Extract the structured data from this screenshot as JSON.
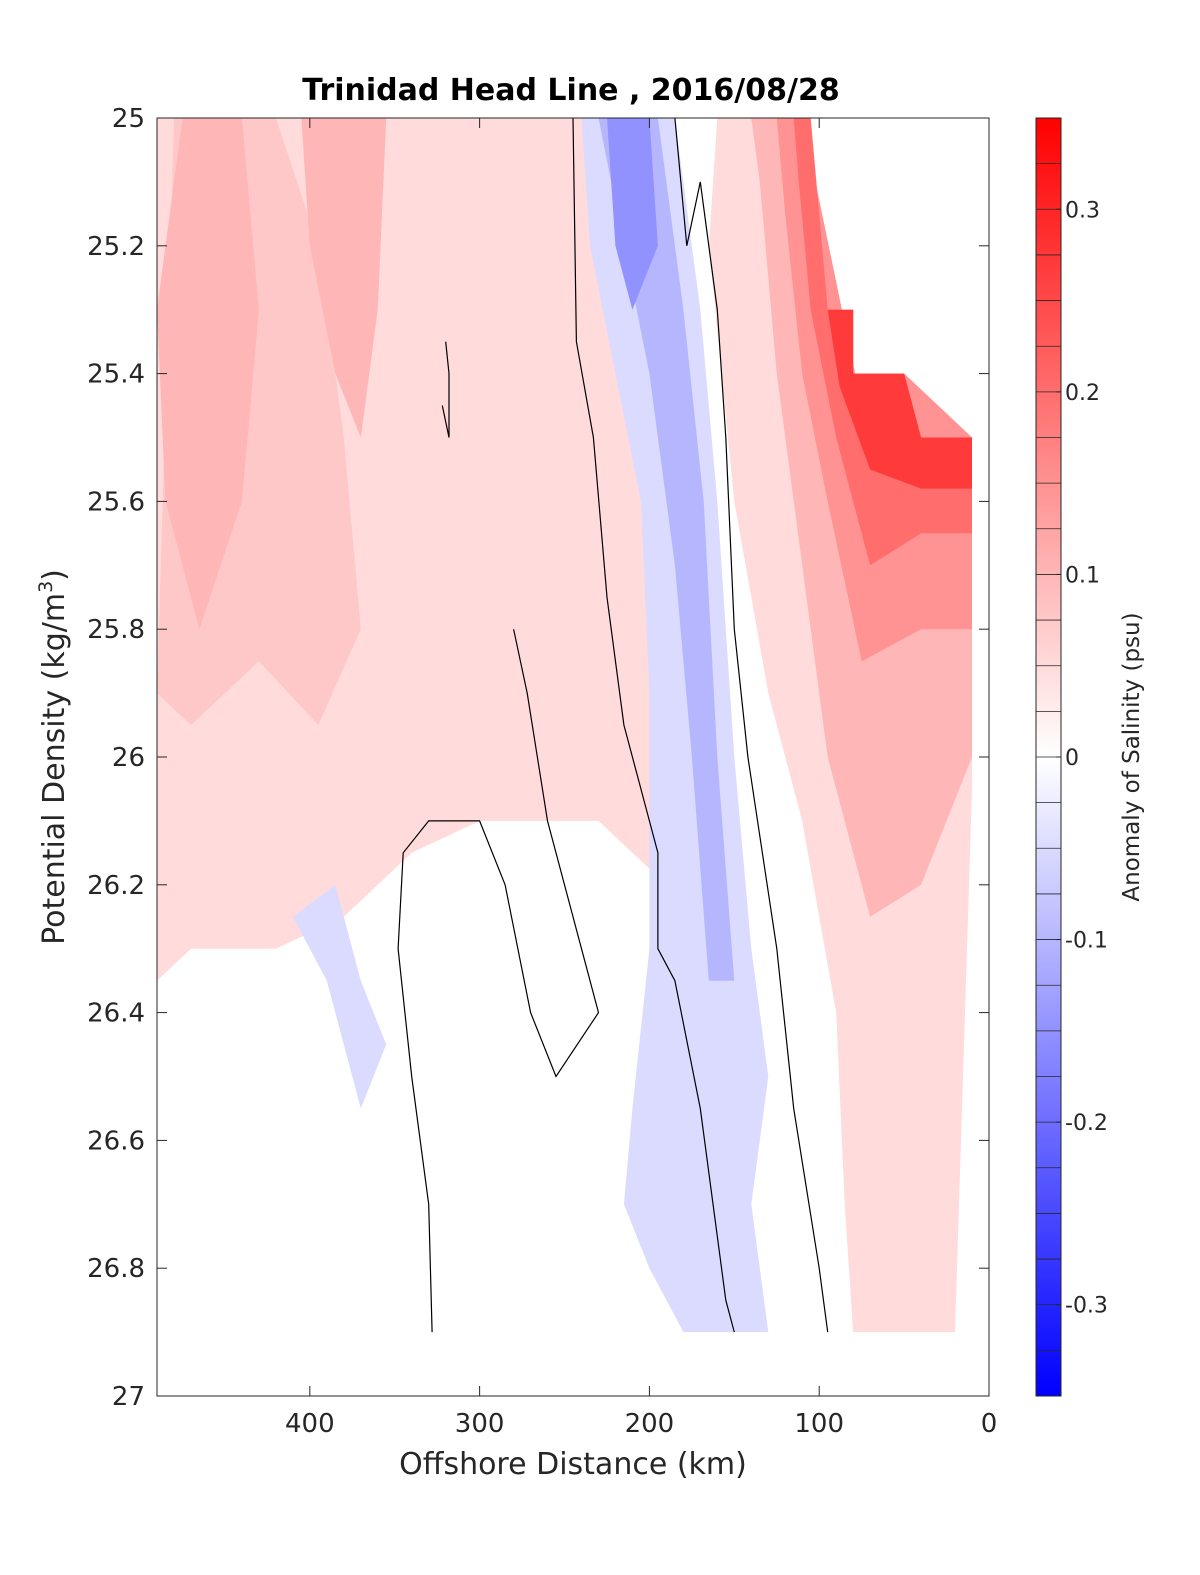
{
  "chart_data": {
    "type": "heatmap",
    "subtype": "filled-contour",
    "title": "Trinidad Head Line , 2016/08/28",
    "xlabel": "Offshore Distance (km)",
    "ylabel_main": "Potential Density (kg/m",
    "ylabel_sup": "3",
    "ylabel_close": ")",
    "xlim": [
      490,
      0
    ],
    "x_reversed": true,
    "ylim": [
      27,
      25
    ],
    "y_reversed": true,
    "x_ticks": [
      400,
      300,
      200,
      100,
      0
    ],
    "y_ticks": [
      25,
      25.2,
      25.4,
      25.6,
      25.8,
      26,
      26.2,
      26.4,
      26.6,
      26.8,
      27
    ],
    "grid": false,
    "colorbar": {
      "label": "Anomaly of Salinity (psu)",
      "range": [
        -0.35,
        0.35
      ],
      "levels_step": 0.025,
      "ticks": [
        -0.3,
        -0.2,
        -0.1,
        0,
        0.1,
        0.2,
        0.3
      ],
      "negative_color": "#0000ff",
      "zero_color": "#ffffff",
      "positive_color": "#ff0000"
    },
    "regions": [
      {
        "name": "red",
        "value": 0.05,
        "points": [
          [
            490,
            25
          ],
          [
            185,
            25
          ],
          [
            178,
            25.2
          ],
          [
            175,
            25.5
          ],
          [
            172,
            25.8
          ],
          [
            175,
            26.0
          ],
          [
            190,
            26.2
          ],
          [
            230,
            26.1
          ],
          [
            300,
            26.1
          ],
          [
            340,
            26.15
          ],
          [
            380,
            26.25
          ],
          [
            420,
            26.3
          ],
          [
            470,
            26.3
          ],
          [
            490,
            26.35
          ]
        ]
      },
      {
        "name": "red",
        "value": 0.05,
        "points": [
          [
            160,
            25
          ],
          [
            110,
            25
          ],
          [
            75,
            25.45
          ],
          [
            50,
            25.4
          ],
          [
            10,
            25.5
          ],
          [
            10,
            26.05
          ],
          [
            20,
            26.9
          ],
          [
            80,
            26.9
          ],
          [
            85,
            26.7
          ],
          [
            90,
            26.4
          ],
          [
            110,
            26.1
          ],
          [
            130,
            25.9
          ],
          [
            150,
            25.6
          ],
          [
            165,
            25.2
          ]
        ]
      },
      {
        "name": "red",
        "value": 0.075,
        "points": [
          [
            480,
            25
          ],
          [
            420,
            25
          ],
          [
            395,
            25.2
          ],
          [
            380,
            25.5
          ],
          [
            370,
            25.8
          ],
          [
            395,
            25.95
          ],
          [
            430,
            25.85
          ],
          [
            470,
            25.95
          ],
          [
            490,
            25.9
          ]
        ]
      },
      {
        "name": "red",
        "value": 0.1,
        "points": [
          [
            475,
            25
          ],
          [
            440,
            25
          ],
          [
            430,
            25.3
          ],
          [
            440,
            25.6
          ],
          [
            465,
            25.8
          ],
          [
            485,
            25.6
          ],
          [
            490,
            25.3
          ]
        ]
      },
      {
        "name": "red",
        "value": 0.1,
        "points": [
          [
            405,
            25
          ],
          [
            355,
            25
          ],
          [
            360,
            25.3
          ],
          [
            370,
            25.5
          ],
          [
            385,
            25.4
          ],
          [
            400,
            25.2
          ]
        ]
      },
      {
        "name": "red",
        "value": 0.1,
        "points": [
          [
            140,
            25
          ],
          [
            110,
            25
          ],
          [
            75,
            25.45
          ],
          [
            50,
            25.4
          ],
          [
            10,
            25.5
          ],
          [
            10,
            26.0
          ],
          [
            40,
            26.2
          ],
          [
            70,
            26.25
          ],
          [
            95,
            26.0
          ],
          [
            110,
            25.7
          ],
          [
            125,
            25.4
          ],
          [
            135,
            25.1
          ]
        ]
      },
      {
        "name": "red",
        "value": 0.15,
        "points": [
          [
            125,
            25
          ],
          [
            110,
            25
          ],
          [
            75,
            25.45
          ],
          [
            50,
            25.4
          ],
          [
            10,
            25.5
          ],
          [
            10,
            25.8
          ],
          [
            40,
            25.8
          ],
          [
            75,
            25.85
          ],
          [
            95,
            25.6
          ],
          [
            110,
            25.4
          ],
          [
            120,
            25.15
          ]
        ]
      },
      {
        "name": "red",
        "value": 0.2,
        "points": [
          [
            115,
            25
          ],
          [
            105,
            25
          ],
          [
            95,
            25.3
          ],
          [
            80,
            25.3
          ],
          [
            80,
            25.4
          ],
          [
            50,
            25.4
          ],
          [
            40,
            25.5
          ],
          [
            10,
            25.5
          ],
          [
            10,
            25.65
          ],
          [
            40,
            25.65
          ],
          [
            70,
            25.7
          ],
          [
            90,
            25.5
          ],
          [
            105,
            25.3
          ],
          [
            112,
            25.1
          ]
        ]
      },
      {
        "name": "red",
        "value": 0.27,
        "points": [
          [
            95,
            25.3
          ],
          [
            80,
            25.3
          ],
          [
            80,
            25.4
          ],
          [
            50,
            25.4
          ],
          [
            40,
            25.5
          ],
          [
            10,
            25.5
          ],
          [
            10,
            25.58
          ],
          [
            40,
            25.58
          ],
          [
            70,
            25.55
          ],
          [
            88,
            25.42
          ]
        ]
      },
      {
        "name": "blue",
        "value": -0.05,
        "points": [
          [
            240,
            25
          ],
          [
            185,
            25
          ],
          [
            170,
            25.3
          ],
          [
            160,
            25.6
          ],
          [
            150,
            26.0
          ],
          [
            140,
            26.3
          ],
          [
            130,
            26.5
          ],
          [
            140,
            26.7
          ],
          [
            130,
            26.9
          ],
          [
            180,
            26.9
          ],
          [
            200,
            26.8
          ],
          [
            215,
            26.7
          ],
          [
            210,
            26.55
          ],
          [
            200,
            26.3
          ],
          [
            200,
            25.9
          ],
          [
            205,
            25.6
          ],
          [
            220,
            25.4
          ],
          [
            235,
            25.2
          ]
        ]
      },
      {
        "name": "blue",
        "value": -0.05,
        "points": [
          [
            410,
            26.25
          ],
          [
            390,
            26.35
          ],
          [
            370,
            26.55
          ],
          [
            355,
            26.45
          ],
          [
            370,
            26.35
          ],
          [
            385,
            26.2
          ]
        ]
      },
      {
        "name": "blue",
        "value": -0.1,
        "points": [
          [
            230,
            25
          ],
          [
            195,
            25
          ],
          [
            180,
            25.3
          ],
          [
            168,
            25.6
          ],
          [
            160,
            26.0
          ],
          [
            150,
            26.35
          ],
          [
            165,
            26.35
          ],
          [
            175,
            26.0
          ],
          [
            185,
            25.7
          ],
          [
            200,
            25.4
          ],
          [
            215,
            25.2
          ]
        ]
      },
      {
        "name": "blue",
        "value": -0.15,
        "points": [
          [
            225,
            25
          ],
          [
            200,
            25
          ],
          [
            195,
            25.2
          ],
          [
            210,
            25.3
          ],
          [
            220,
            25.2
          ]
        ]
      }
    ],
    "contour_lines": [
      [
        [
          245,
          25
        ],
        [
          243,
          25.35
        ],
        [
          233,
          25.5
        ],
        [
          225,
          25.75
        ],
        [
          215,
          25.95
        ],
        [
          195,
          26.15
        ],
        [
          195,
          26.3
        ],
        [
          185,
          26.35
        ],
        [
          170,
          26.55
        ],
        [
          155,
          26.85
        ],
        [
          150,
          26.9
        ]
      ],
      [
        [
          185,
          25
        ],
        [
          178,
          25.2
        ],
        [
          170,
          25.1
        ],
        [
          160,
          25.3
        ],
        [
          155,
          25.5
        ],
        [
          150,
          25.8
        ],
        [
          142,
          26.0
        ],
        [
          125,
          26.3
        ],
        [
          115,
          26.55
        ],
        [
          100,
          26.8
        ],
        [
          95,
          26.9
        ]
      ],
      [
        [
          320,
          25.35
        ],
        [
          318,
          25.4
        ],
        [
          318,
          25.5
        ],
        [
          322,
          25.45
        ]
      ],
      [
        [
          280,
          25.8
        ],
        [
          272,
          25.9
        ],
        [
          260,
          26.1
        ],
        [
          240,
          26.3
        ],
        [
          230,
          26.4
        ],
        [
          255,
          26.5
        ],
        [
          270,
          26.4
        ],
        [
          285,
          26.2
        ],
        [
          300,
          26.1
        ],
        [
          330,
          26.1
        ],
        [
          345,
          26.15
        ],
        [
          348,
          26.3
        ],
        [
          340,
          26.5
        ],
        [
          330,
          26.7
        ],
        [
          328,
          26.9
        ]
      ]
    ]
  }
}
